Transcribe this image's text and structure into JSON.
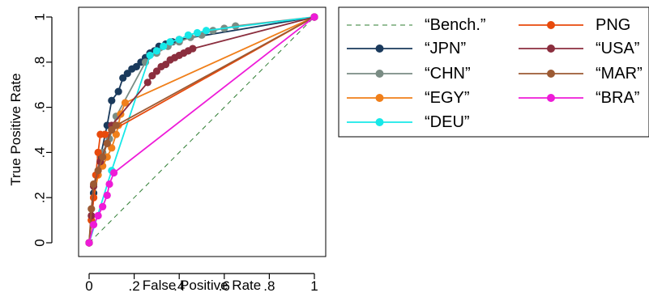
{
  "chart_data": {
    "type": "line",
    "title": "",
    "xlabel": "False Positive Rate",
    "ylabel": "True Positive Rate",
    "xlim": [
      0,
      1
    ],
    "ylim": [
      0,
      1
    ],
    "x_ticks": [
      "0",
      ".2",
      ".4",
      ".6",
      ".8",
      "1"
    ],
    "y_ticks": [
      "0",
      ".2",
      ".4",
      ".6",
      ".8",
      "1"
    ],
    "grid": false,
    "legend_placement": "right",
    "series": [
      {
        "name": "“Bench.”",
        "color": "#2e7d32",
        "dashed": true,
        "markers": false,
        "points": [
          [
            0,
            0
          ],
          [
            1,
            1
          ]
        ]
      },
      {
        "name": "“JPN”",
        "color": "#1a3a5c",
        "dashed": false,
        "markers": true,
        "points": [
          [
            0,
            0
          ],
          [
            0.02,
            0.22
          ],
          [
            0.05,
            0.38
          ],
          [
            0.08,
            0.52
          ],
          [
            0.1,
            0.63
          ],
          [
            0.13,
            0.67
          ],
          [
            0.15,
            0.73
          ],
          [
            0.17,
            0.75
          ],
          [
            0.19,
            0.77
          ],
          [
            0.21,
            0.78
          ],
          [
            0.23,
            0.8
          ],
          [
            0.25,
            0.82
          ],
          [
            0.27,
            0.84
          ],
          [
            0.29,
            0.85
          ],
          [
            0.31,
            0.87
          ],
          [
            0.34,
            0.88
          ],
          [
            0.37,
            0.89
          ],
          [
            0.4,
            0.9
          ],
          [
            1,
            1
          ]
        ]
      },
      {
        "name": "“CHN”",
        "color": "#7a8c84",
        "dashed": false,
        "markers": true,
        "points": [
          [
            0,
            0
          ],
          [
            0.03,
            0.3
          ],
          [
            0.06,
            0.4
          ],
          [
            0.09,
            0.46
          ],
          [
            0.12,
            0.56
          ],
          [
            0.25,
            0.8
          ],
          [
            0.3,
            0.84
          ],
          [
            0.35,
            0.87
          ],
          [
            0.4,
            0.89
          ],
          [
            0.45,
            0.91
          ],
          [
            0.5,
            0.92
          ],
          [
            0.55,
            0.94
          ],
          [
            0.6,
            0.95
          ],
          [
            0.65,
            0.96
          ],
          [
            1,
            1
          ]
        ]
      },
      {
        "name": "“EGY”",
        "color": "#f07f1a",
        "dashed": false,
        "markers": true,
        "points": [
          [
            0,
            0
          ],
          [
            0.01,
            0.1
          ],
          [
            0.02,
            0.2
          ],
          [
            0.04,
            0.3
          ],
          [
            0.06,
            0.34
          ],
          [
            0.08,
            0.38
          ],
          [
            0.1,
            0.42
          ],
          [
            0.12,
            0.48
          ],
          [
            0.13,
            0.52
          ],
          [
            0.14,
            0.57
          ],
          [
            0.16,
            0.62
          ],
          [
            1,
            1
          ]
        ]
      },
      {
        "name": "“DEU”",
        "color": "#17e8e8",
        "dashed": false,
        "markers": true,
        "points": [
          [
            0,
            0
          ],
          [
            0.1,
            0.32
          ],
          [
            0.27,
            0.83
          ],
          [
            0.3,
            0.85
          ],
          [
            0.33,
            0.87
          ],
          [
            0.36,
            0.89
          ],
          [
            0.4,
            0.9
          ],
          [
            0.44,
            0.92
          ],
          [
            0.48,
            0.93
          ],
          [
            0.52,
            0.94
          ],
          [
            1,
            1
          ]
        ]
      },
      {
        "name": "PNG",
        "color": "#e84a0c",
        "dashed": false,
        "markers": true,
        "points": [
          [
            0,
            0
          ],
          [
            0.01,
            0.1
          ],
          [
            0.02,
            0.2
          ],
          [
            0.03,
            0.3
          ],
          [
            0.04,
            0.4
          ],
          [
            0.05,
            0.48
          ],
          [
            0.07,
            0.48
          ],
          [
            1,
            1
          ]
        ]
      },
      {
        "name": "“USA”",
        "color": "#8b2e3e",
        "dashed": false,
        "markers": true,
        "points": [
          [
            0,
            0
          ],
          [
            0.01,
            0.12
          ],
          [
            0.02,
            0.25
          ],
          [
            0.05,
            0.36
          ],
          [
            0.08,
            0.44
          ],
          [
            0.1,
            0.52
          ],
          [
            0.26,
            0.71
          ],
          [
            0.28,
            0.74
          ],
          [
            0.3,
            0.76
          ],
          [
            0.32,
            0.78
          ],
          [
            0.34,
            0.79
          ],
          [
            0.36,
            0.81
          ],
          [
            0.38,
            0.82
          ],
          [
            0.4,
            0.83
          ],
          [
            0.42,
            0.84
          ],
          [
            0.44,
            0.85
          ],
          [
            0.46,
            0.86
          ],
          [
            1,
            1
          ]
        ]
      },
      {
        "name": "“MAR”",
        "color": "#9c5a33",
        "dashed": false,
        "markers": true,
        "points": [
          [
            0,
            0
          ],
          [
            0.01,
            0.15
          ],
          [
            0.02,
            0.26
          ],
          [
            0.04,
            0.32
          ],
          [
            0.06,
            0.38
          ],
          [
            0.08,
            0.44
          ],
          [
            0.1,
            0.5
          ],
          [
            0.12,
            0.52
          ],
          [
            1,
            1
          ]
        ]
      },
      {
        "name": "“BRA”",
        "color": "#ee1bd8",
        "dashed": false,
        "markers": true,
        "points": [
          [
            0,
            0
          ],
          [
            0.02,
            0.08
          ],
          [
            0.04,
            0.12
          ],
          [
            0.06,
            0.16
          ],
          [
            0.08,
            0.21
          ],
          [
            0.09,
            0.26
          ],
          [
            0.11,
            0.31
          ],
          [
            1,
            1
          ]
        ]
      }
    ]
  }
}
